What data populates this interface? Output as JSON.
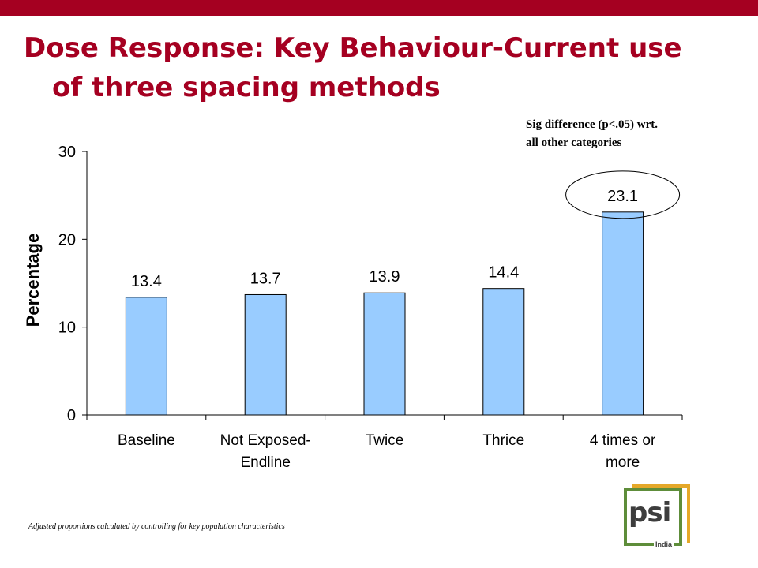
{
  "header": {
    "title_line1": "Dose Response: Key Behaviour-Current use",
    "title_line2": "of three spacing methods"
  },
  "annotation": {
    "sig_note": "Sig difference (p<.05) wrt.\nall other categories",
    "highlighted_category": "4 times or more"
  },
  "footnote": "Adjusted proportions calculated by controlling for key population characteristics",
  "logo": {
    "text": "psi",
    "sub": "India"
  },
  "colors": {
    "title": "#a50021",
    "bar_fill": "#99ccff",
    "bar_stroke": "#000000"
  },
  "chart_data": {
    "type": "bar",
    "title": "",
    "ylabel": "Percentage",
    "xlabel": "",
    "ylim": [
      0,
      30
    ],
    "yticks": [
      0,
      10,
      20,
      30
    ],
    "categories": [
      [
        "Baseline"
      ],
      [
        "Not Exposed-",
        "Endline"
      ],
      [
        "Twice"
      ],
      [
        "Thrice"
      ],
      [
        "4 times or",
        "more"
      ]
    ],
    "values": [
      13.4,
      13.7,
      13.9,
      14.4,
      23.1
    ],
    "data_labels": [
      "13.4",
      "13.7",
      "13.9",
      "14.4",
      "23.1"
    ],
    "grid": false,
    "legend": "none"
  }
}
